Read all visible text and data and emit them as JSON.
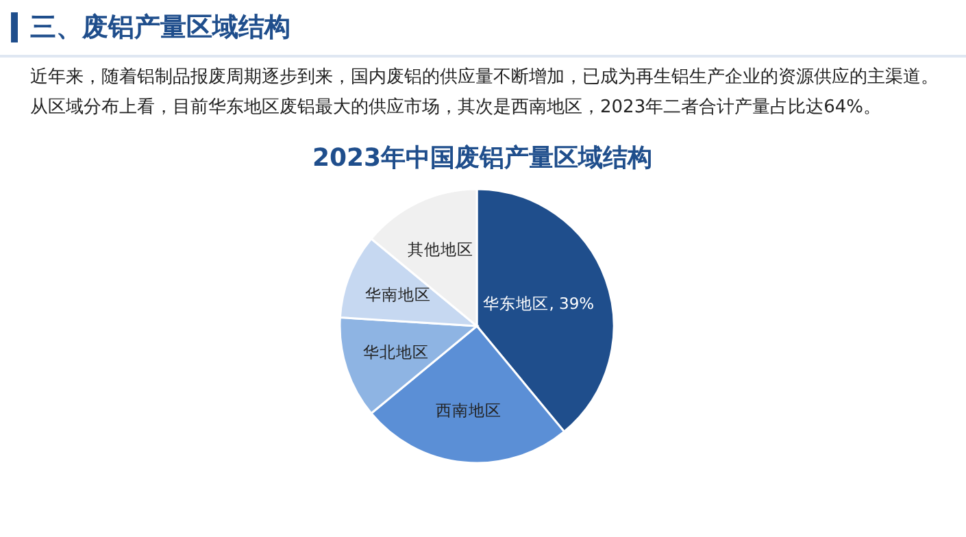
{
  "chart_data": {
    "type": "pie",
    "title": "2023年中国废铝产量区域结构",
    "annotations": [
      "三、废铝产量区域结构",
      "近年来，随着铝制品报废周期逐步到来，国内废铝的供应量不断增加，已成为再生铝生产企业的资源供应的主渠道。从区域分布上看，目前华东地区废铝最大的供应市场，其次是西南地区，2023年二者合计产量占比达64%。"
    ],
    "categories": [
      "华东地区",
      "西南地区",
      "华北地区",
      "华南地区",
      "其他地区"
    ],
    "values": [
      39,
      25,
      12,
      10,
      14
    ],
    "value_labels": [
      "39%",
      null,
      null,
      null,
      null
    ],
    "colors": [
      "#1f4e8c",
      "#5b8fd6",
      "#8eb4e3",
      "#c6d8f1",
      "#f0f0f0"
    ]
  }
}
